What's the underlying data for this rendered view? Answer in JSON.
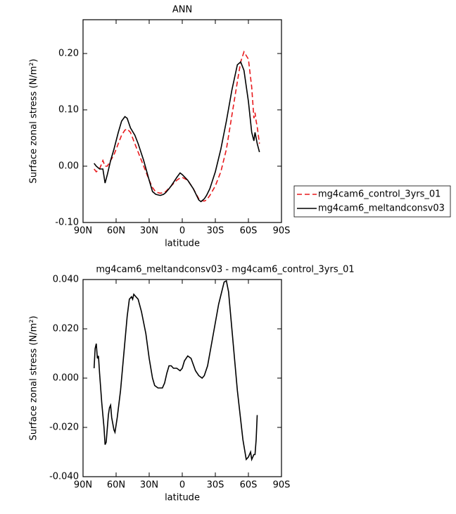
{
  "chart_data": [
    {
      "type": "line",
      "title": "ANN",
      "xlabel": "latitude",
      "ylabel": "Surface zonal stress (N/m²)",
      "x": [
        80,
        78,
        75,
        72,
        70,
        68,
        65,
        62,
        58,
        55,
        52,
        50,
        47,
        43,
        40,
        35,
        30,
        27,
        24,
        20,
        17,
        15,
        12,
        10,
        5,
        2,
        0,
        -5,
        -10,
        -15,
        -17,
        -20,
        -22,
        -25,
        -30,
        -35,
        -40,
        -45,
        -50,
        -53,
        -56,
        -60,
        -63,
        -65,
        -66,
        -67,
        -68,
        -70
      ],
      "series": [
        {
          "name": "mg4cam6_control_3yrs_01",
          "color": "#e8191c",
          "dash": true,
          "values": [
            -0.005,
            -0.01,
            -0.005,
            0.01,
            0.0,
            0.0,
            0.01,
            0.02,
            0.04,
            0.055,
            0.064,
            0.066,
            0.06,
            0.04,
            0.025,
            0.0,
            -0.025,
            -0.038,
            -0.046,
            -0.048,
            -0.047,
            -0.045,
            -0.039,
            -0.035,
            -0.025,
            -0.021,
            -0.02,
            -0.025,
            -0.04,
            -0.058,
            -0.061,
            -0.062,
            -0.06,
            -0.052,
            -0.035,
            -0.01,
            0.03,
            0.09,
            0.15,
            0.185,
            0.203,
            0.19,
            0.14,
            0.085,
            0.095,
            0.08,
            0.07,
            0.04
          ]
        },
        {
          "name": "mg4cam6_meltandconsv03",
          "color": "#000000",
          "dash": false,
          "values": [
            0.005,
            0.0,
            -0.005,
            -0.005,
            -0.03,
            -0.015,
            0.01,
            0.03,
            0.06,
            0.08,
            0.088,
            0.085,
            0.068,
            0.055,
            0.04,
            0.01,
            -0.025,
            -0.045,
            -0.05,
            -0.052,
            -0.05,
            -0.047,
            -0.04,
            -0.035,
            -0.02,
            -0.012,
            -0.015,
            -0.025,
            -0.04,
            -0.06,
            -0.063,
            -0.058,
            -0.052,
            -0.04,
            -0.01,
            0.03,
            0.08,
            0.135,
            0.18,
            0.185,
            0.17,
            0.115,
            0.06,
            0.045,
            0.06,
            0.05,
            0.04,
            0.025
          ]
        }
      ],
      "xlim": [
        90,
        -90
      ],
      "xticks": [
        {
          "value": 90,
          "label": "90N"
        },
        {
          "value": 60,
          "label": "60N"
        },
        {
          "value": 30,
          "label": "30N"
        },
        0,
        {
          "value": -30,
          "label": "30S"
        },
        {
          "value": -60,
          "label": "60S"
        },
        {
          "value": -90,
          "label": "90S"
        }
      ],
      "ylim": [
        -0.1,
        0.26
      ],
      "yticks": [
        {
          "value": -0.1,
          "label": "-0.10"
        },
        {
          "value": 0,
          "label": "0.00"
        },
        {
          "value": 0.1,
          "label": "0.10"
        },
        {
          "value": 0.2,
          "label": "0.20"
        }
      ],
      "legend": "outside-right"
    },
    {
      "type": "line",
      "title": "mg4cam6_meltandconsv03 - mg4cam6_control_3yrs_01",
      "xlabel": "latitude",
      "ylabel": "Surface zonal stress (N/m²)",
      "x": [
        80,
        79,
        78,
        77,
        76,
        75,
        73,
        71,
        70,
        69,
        67,
        66,
        65,
        64,
        62,
        61,
        59,
        56,
        53,
        50,
        48,
        46,
        45,
        44,
        42,
        40,
        37,
        33,
        30,
        27,
        25,
        22,
        18,
        16,
        14,
        12,
        10,
        8,
        5,
        2,
        0,
        -2,
        -5,
        -8,
        -12,
        -15,
        -18,
        -20,
        -23,
        -27,
        -33,
        -38,
        -40,
        -42,
        -45,
        -50,
        -55,
        -58,
        -60,
        -62,
        -63,
        -65,
        -66,
        -67,
        -68
      ],
      "series": [
        {
          "name": "mg4cam6_meltandconsv03 - mg4cam6_control_3yrs_01",
          "color": "#000000",
          "dash": false,
          "values": [
            0.004,
            0.012,
            0.014,
            0.008,
            0.009,
            0.002,
            -0.01,
            -0.02,
            -0.027,
            -0.026,
            -0.015,
            -0.012,
            -0.011,
            -0.016,
            -0.021,
            -0.022,
            -0.016,
            -0.005,
            0.01,
            0.025,
            0.032,
            0.033,
            0.032,
            0.034,
            0.033,
            0.032,
            0.027,
            0.018,
            0.008,
            0.0,
            -0.003,
            -0.004,
            -0.004,
            -0.002,
            0.002,
            0.005,
            0.005,
            0.004,
            0.004,
            0.003,
            0.004,
            0.007,
            0.009,
            0.008,
            0.003,
            0.001,
            0.0,
            0.001,
            0.005,
            0.015,
            0.03,
            0.039,
            0.0395,
            0.035,
            0.02,
            -0.005,
            -0.025,
            -0.033,
            -0.032,
            -0.03,
            -0.033,
            -0.031,
            -0.031,
            -0.025,
            -0.015
          ]
        }
      ],
      "xlim": [
        90,
        -90
      ],
      "xticks": [
        {
          "value": 90,
          "label": "90N"
        },
        {
          "value": 60,
          "label": "60N"
        },
        {
          "value": 30,
          "label": "30N"
        },
        0,
        {
          "value": -30,
          "label": "30S"
        },
        {
          "value": -60,
          "label": "60S"
        },
        {
          "value": -90,
          "label": "90S"
        }
      ],
      "ylim": [
        -0.04,
        0.04
      ],
      "yticks": [
        {
          "value": -0.04,
          "label": "-0.040"
        },
        {
          "value": -0.02,
          "label": "-0.020"
        },
        {
          "value": 0,
          "label": "0.000"
        },
        {
          "value": 0.02,
          "label": "0.020"
        },
        {
          "value": 0.04,
          "label": "0.040"
        }
      ]
    }
  ]
}
